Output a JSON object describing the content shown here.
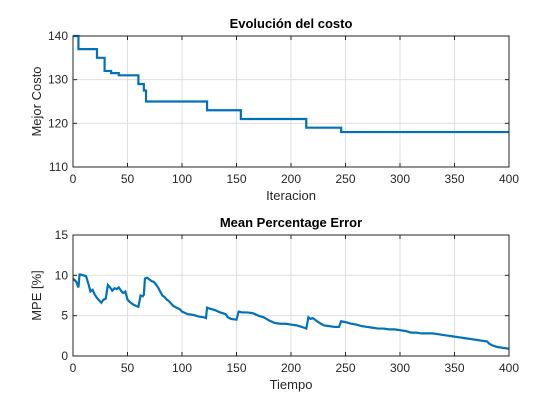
{
  "chart_data": [
    {
      "type": "line",
      "title": "Evolución del costo",
      "xlabel": "Iteracion",
      "ylabel": "Mejor Costo",
      "xlim": [
        0,
        400
      ],
      "ylim": [
        110,
        140
      ],
      "xticks": [
        0,
        50,
        100,
        150,
        200,
        250,
        300,
        350,
        400
      ],
      "yticks": [
        110,
        120,
        130,
        140
      ],
      "grid": true,
      "color": "#0072BD",
      "series": [
        {
          "x": [
            0,
            5,
            5,
            22,
            22,
            29,
            29,
            35,
            35,
            42,
            42,
            60,
            60,
            65,
            65,
            67,
            67,
            123,
            123,
            154,
            154,
            214,
            214,
            246,
            246,
            400
          ],
          "y": [
            140,
            140,
            137,
            137,
            135,
            135,
            132,
            132,
            131.5,
            131.5,
            131,
            131,
            129,
            129,
            127.5,
            127.5,
            125,
            125,
            123,
            123,
            121,
            121,
            119,
            119,
            118,
            118
          ]
        }
      ]
    },
    {
      "type": "line",
      "title": "Mean Percentage Error",
      "xlabel": "Tiempo",
      "ylabel": "MPE [%]",
      "xlim": [
        0,
        400
      ],
      "ylim": [
        0,
        15
      ],
      "xticks": [
        0,
        50,
        100,
        150,
        200,
        250,
        300,
        350,
        400
      ],
      "yticks": [
        0,
        5,
        10,
        15
      ],
      "grid": true,
      "color": "#0072BD",
      "series": [
        {
          "x": [
            0,
            3,
            5,
            6,
            7,
            12,
            14,
            16,
            18,
            20,
            22,
            24,
            26,
            28,
            30,
            32,
            34,
            36,
            38,
            40,
            42,
            44,
            46,
            48,
            50,
            52,
            55,
            58,
            60,
            62,
            64,
            65,
            66,
            68,
            70,
            72,
            74,
            76,
            78,
            80,
            82,
            84,
            86,
            88,
            90,
            92,
            95,
            98,
            100,
            105,
            110,
            115,
            120,
            122,
            123,
            125,
            130,
            135,
            140,
            142,
            145,
            150,
            152,
            155,
            160,
            165,
            170,
            175,
            180,
            185,
            190,
            195,
            200,
            205,
            210,
            212,
            214,
            216,
            218,
            220,
            225,
            230,
            235,
            240,
            244,
            246,
            250,
            255,
            260,
            265,
            270,
            275,
            280,
            285,
            290,
            295,
            300,
            305,
            310,
            315,
            320,
            325,
            330,
            335,
            340,
            345,
            350,
            355,
            360,
            365,
            370,
            375,
            380,
            382,
            385,
            390,
            395,
            400
          ],
          "y": [
            9.6,
            9.2,
            8.5,
            10.1,
            10.1,
            9.9,
            9.0,
            8.0,
            8.2,
            7.6,
            7.2,
            6.9,
            6.6,
            7.0,
            7.1,
            8.8,
            8.5,
            8.1,
            8.4,
            8.3,
            8.5,
            8.1,
            7.8,
            8.0,
            7.0,
            6.7,
            6.4,
            6.2,
            6.1,
            7.5,
            7.4,
            7.6,
            9.6,
            9.7,
            9.5,
            9.3,
            9.2,
            8.9,
            8.5,
            8.0,
            7.5,
            7.3,
            7.0,
            6.8,
            6.5,
            6.2,
            6.0,
            5.8,
            5.5,
            5.2,
            5.1,
            4.9,
            4.8,
            4.7,
            6.0,
            5.9,
            5.7,
            5.4,
            5.2,
            4.8,
            4.6,
            4.5,
            5.5,
            5.4,
            5.4,
            5.3,
            5.0,
            4.8,
            4.4,
            4.1,
            4.0,
            4.0,
            3.9,
            3.8,
            3.6,
            3.5,
            3.4,
            4.8,
            4.6,
            4.7,
            4.2,
            3.8,
            3.7,
            3.6,
            3.6,
            4.3,
            4.2,
            4.0,
            3.9,
            3.7,
            3.6,
            3.5,
            3.4,
            3.4,
            3.3,
            3.3,
            3.2,
            3.1,
            2.9,
            2.9,
            2.8,
            2.8,
            2.8,
            2.7,
            2.6,
            2.5,
            2.4,
            2.3,
            2.2,
            2.1,
            2.0,
            1.9,
            1.8,
            1.5,
            1.3,
            1.1,
            1.0,
            0.9
          ]
        }
      ]
    }
  ]
}
